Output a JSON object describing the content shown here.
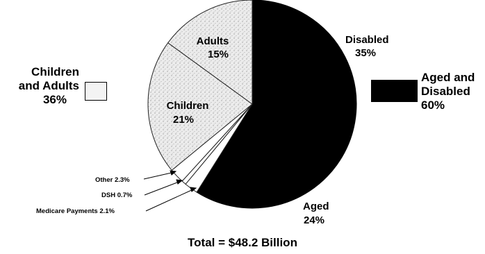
{
  "chart_data": {
    "type": "pie",
    "slices": [
      {
        "name": "Disabled",
        "value": 35,
        "pct_label": "35%",
        "color": "#000000"
      },
      {
        "name": "Aged",
        "value": 24,
        "pct_label": "24%",
        "color": "#000000"
      },
      {
        "name": "Medicare Payments",
        "value": 2.1,
        "label": "Medicare Payments 2.1%",
        "color": "#ffffff"
      },
      {
        "name": "DSH",
        "value": 0.7,
        "label": "DSH 0.7%",
        "color": "#ffffff"
      },
      {
        "name": "Other",
        "value": 2.3,
        "label": "Other 2.3%",
        "color": "#ffffff"
      },
      {
        "name": "Children",
        "value": 21,
        "pct_label": "21%",
        "color": "#e4e4e4"
      },
      {
        "name": "Adults",
        "value": 15,
        "pct_label": "15%",
        "color": "#e4e4e4"
      }
    ],
    "legend": [
      {
        "line1": "Children",
        "line2": "and Adults",
        "pct": "36%",
        "color": "#f2f2f2"
      },
      {
        "line1": "Aged and",
        "line2": "Disabled",
        "pct": "60%",
        "color": "#000000"
      }
    ],
    "total": "Total = $48.2 Billion"
  }
}
